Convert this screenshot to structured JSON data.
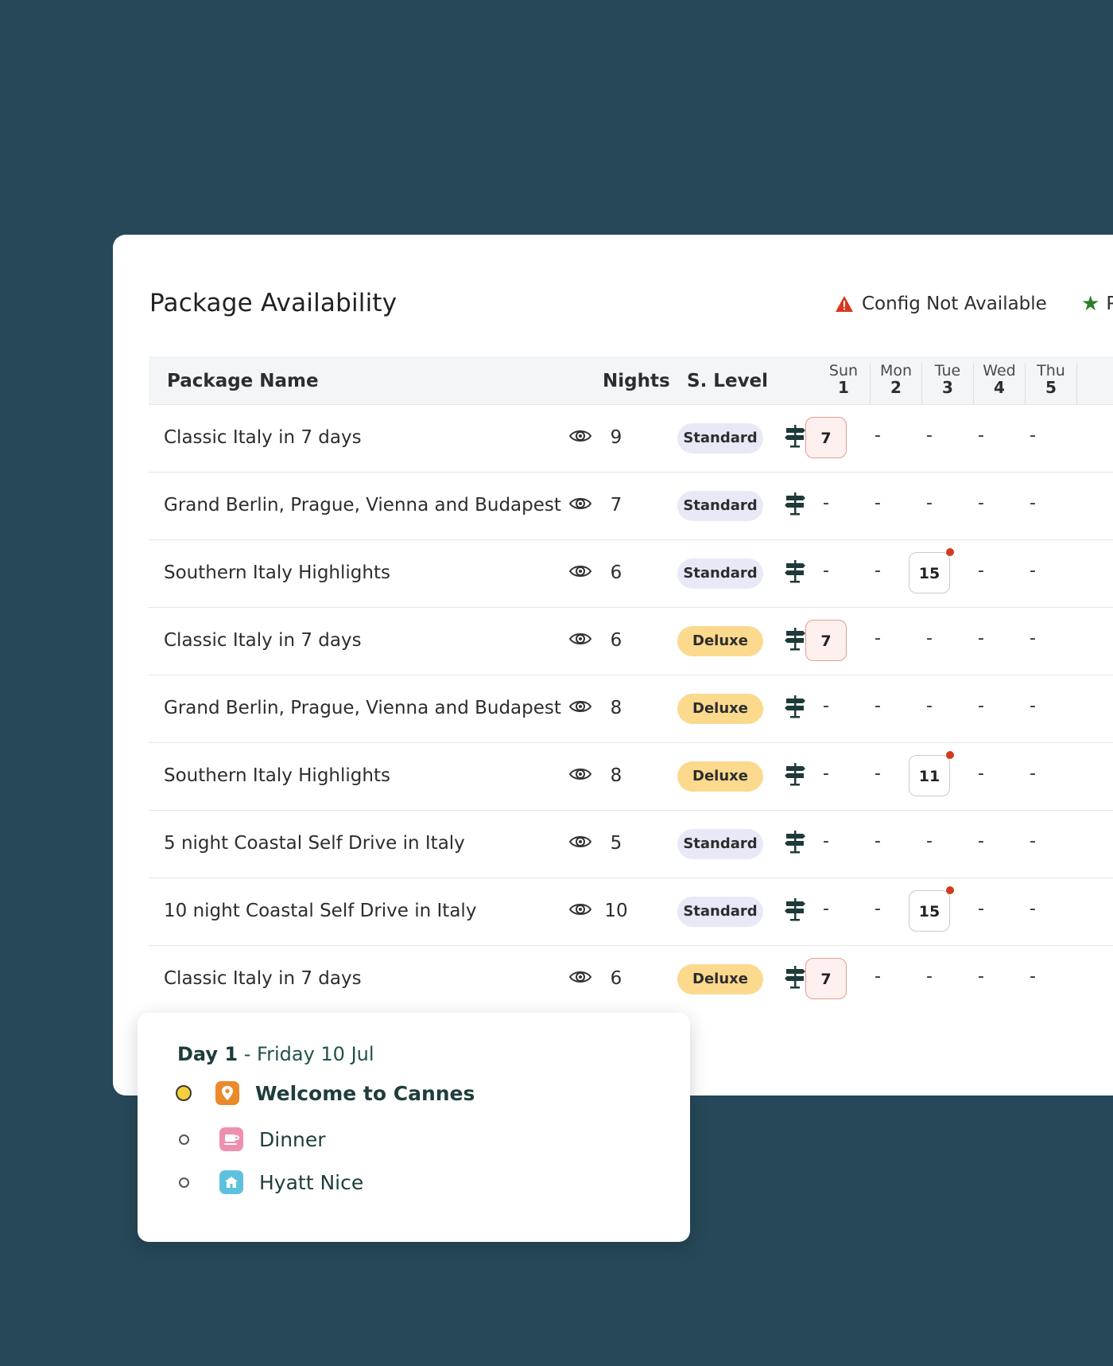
{
  "title": "Package Availability",
  "legend": {
    "warning_label": "Config Not Available",
    "warning_icon": "warning-icon",
    "star_label": "P",
    "star_icon": "star-icon"
  },
  "columns": {
    "name": "Package Name",
    "nights": "Nights",
    "level": "S. Level"
  },
  "days": [
    {
      "dow": "Sun",
      "num": "1"
    },
    {
      "dow": "Mon",
      "num": "2"
    },
    {
      "dow": "Tue",
      "num": "3"
    },
    {
      "dow": "Wed",
      "num": "4"
    },
    {
      "dow": "Thu",
      "num": "5"
    }
  ],
  "rows": [
    {
      "name": "Classic Italy in 7 days",
      "nights": "9",
      "level": "Standard",
      "cells": [
        "7",
        "-",
        "-",
        "-",
        "-"
      ],
      "edge": "S C"
    },
    {
      "name": "Grand Berlin, Prague, Vienna and Budapest",
      "nights": "7",
      "level": "Standard",
      "cells": [
        "-",
        "-",
        "-",
        "-",
        "-"
      ]
    },
    {
      "name": "Southern Italy Highlights",
      "nights": "6",
      "level": "Standard",
      "cells": [
        "-",
        "-",
        "15",
        "-",
        "-"
      ]
    },
    {
      "name": "Classic Italy in 7 days",
      "nights": "6",
      "level": "Deluxe",
      "cells": [
        "7",
        "-",
        "-",
        "-",
        "-"
      ],
      "edge": "S C"
    },
    {
      "name": "Grand Berlin, Prague, Vienna and Budapest",
      "nights": "8",
      "level": "Deluxe",
      "cells": [
        "-",
        "-",
        "-",
        "-",
        "-"
      ]
    },
    {
      "name": "Southern Italy Highlights",
      "nights": "8",
      "level": "Deluxe",
      "cells": [
        "-",
        "-",
        "11",
        "-",
        "-"
      ]
    },
    {
      "name": "5 night Coastal Self Drive in Italy",
      "nights": "5",
      "level": "Standard",
      "cells": [
        "-",
        "-",
        "-",
        "-",
        "-"
      ]
    },
    {
      "name": "10 night Coastal Self Drive in Italy",
      "nights": "10",
      "level": "Standard",
      "cells": [
        "-",
        "-",
        "15",
        "-",
        "-"
      ]
    },
    {
      "name": "Classic Italy in 7 days",
      "nights": "6",
      "level": "Deluxe",
      "cells": [
        "7",
        "-",
        "-",
        "-",
        "-"
      ],
      "edge": "S C"
    }
  ],
  "popup": {
    "day_label": "Day 1",
    "separator": "-",
    "date": "Friday 10 Jul",
    "items": [
      {
        "label": "Welcome to Cannes",
        "icon": "location-pin-icon"
      },
      {
        "label": "Dinner",
        "icon": "cup-icon"
      },
      {
        "label": "Hyatt Nice",
        "icon": "hotel-icon"
      }
    ]
  }
}
